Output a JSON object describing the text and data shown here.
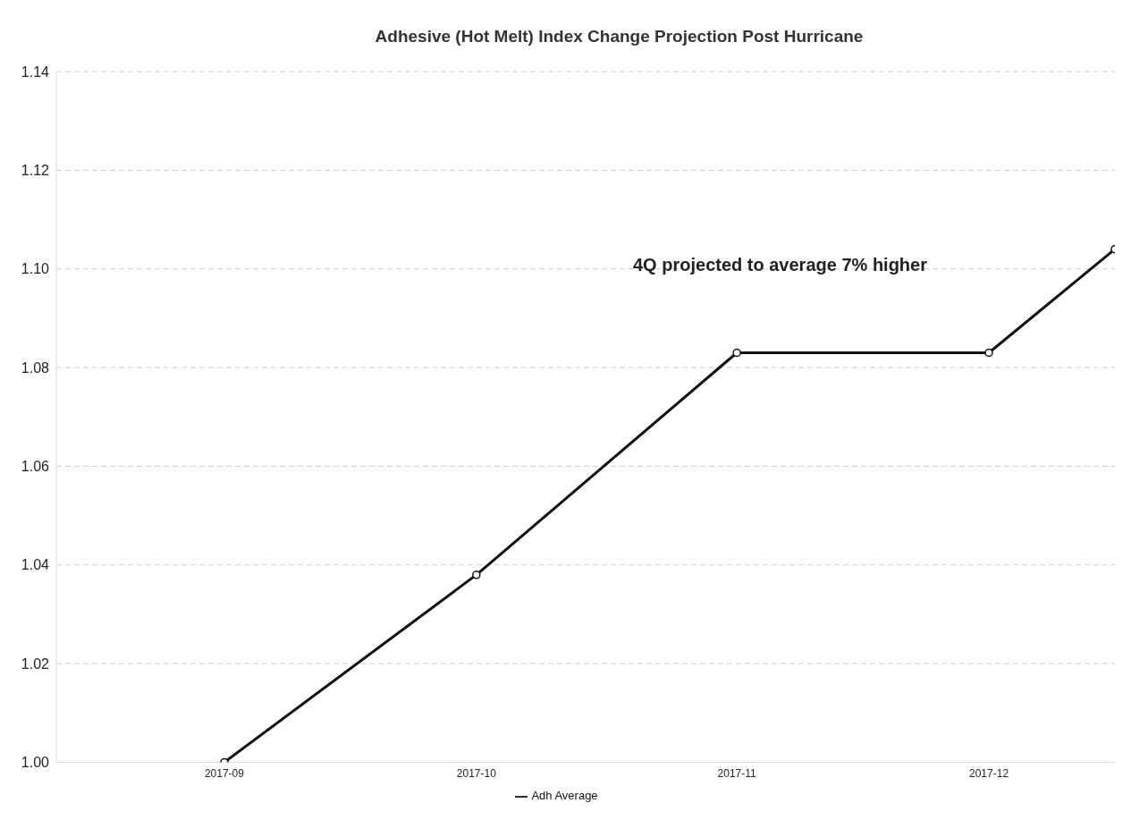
{
  "chart_data": {
    "type": "line",
    "title": "Adhesive (Hot Melt) Index Change Projection Post Hurricane",
    "x": [
      "2017-09",
      "2017-10",
      "2017-11",
      "2017-12",
      "2017-12-16"
    ],
    "series": [
      {
        "name": "Adh Average",
        "color": "#111111",
        "values": [
          1.0,
          1.038,
          1.083,
          1.083,
          1.104
        ]
      }
    ],
    "xlim": [
      "2017-08-12",
      "2017-12-16"
    ],
    "xticks": [
      "2017-09",
      "2017-10",
      "2017-11",
      "2017-12"
    ],
    "ylim": [
      1.0,
      1.14
    ],
    "yticks": [
      {
        "value": 1.0,
        "label": "1.00"
      },
      1.02,
      1.04,
      1.06,
      1.08,
      {
        "value": 1.1,
        "label": "1.10"
      },
      1.12,
      1.14
    ],
    "annotations": [
      "4Q projected to average 7% higher"
    ],
    "grid": "y",
    "legend": "bottom",
    "marker": "circle",
    "line_style": "solid"
  }
}
